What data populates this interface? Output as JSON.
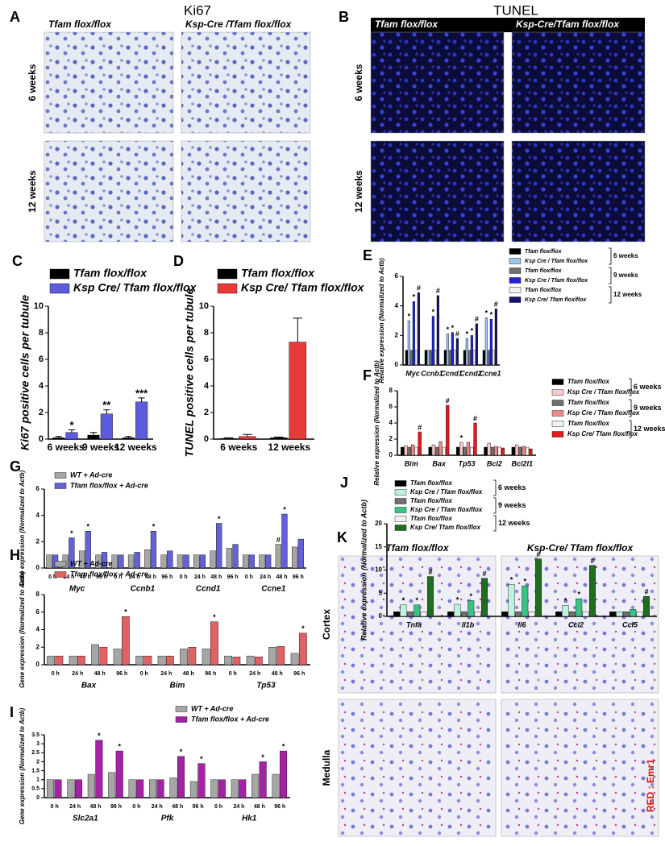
{
  "image_panels": [
    {
      "letter": "A",
      "title": "Ki67",
      "columns": [
        "Tfam flox/flox",
        "Ksp-Cre /Tfam flox/flox"
      ],
      "rows": [
        "6 weeks",
        "12 weeks"
      ]
    },
    {
      "letter": "B",
      "title": "TUNEL",
      "columns": [
        "Tfam flox/flox",
        "Ksp-Cre/Tfam flox/flox"
      ],
      "rows": [
        "6 weeks",
        "12 weeks"
      ]
    },
    {
      "letter": "K",
      "columns": [
        "Tfam flox/flox",
        "Ksp-Cre/ Tfam flox/flox"
      ],
      "rows": [
        "Cortex",
        "Medulla"
      ],
      "note": "RED : Emr1"
    }
  ],
  "chart_data": [
    {
      "type": "bar",
      "panel": "C",
      "ylabel": "Ki67 positive cells per tubule",
      "categories": [
        "6 weeks",
        "9 weeks",
        "12 weeks"
      ],
      "ylim": [
        0,
        10
      ],
      "yticks": [
        0,
        2,
        4,
        6,
        8,
        10
      ],
      "series": [
        {
          "name": "Tfam flox/flox",
          "color": "#000000",
          "values": [
            0.1,
            0.3,
            0.1
          ],
          "errors": [
            0.1,
            0.2,
            0.1
          ]
        },
        {
          "name": "Ksp Cre/ Tfam flox/flox",
          "color": "#5b5bdc",
          "values": [
            0.5,
            1.9,
            2.8
          ],
          "errors": [
            0.2,
            0.3,
            0.3
          ],
          "annotations": [
            "*",
            "**",
            "***"
          ]
        }
      ]
    },
    {
      "type": "bar",
      "panel": "D",
      "ylabel": "TUNEL positive cells per tubule",
      "categories": [
        "6 weeks",
        "12 weeks"
      ],
      "ylim": [
        0,
        10
      ],
      "yticks": [
        0,
        2,
        4,
        6,
        8,
        10
      ],
      "series": [
        {
          "name": "Tfam flox/flox",
          "color": "#000000",
          "values": [
            0.05,
            0.1
          ],
          "errors": [
            0.05,
            0.05
          ]
        },
        {
          "name": "Ksp Cre/ Tfam flox/flox",
          "color": "#e83a3a",
          "values": [
            0.2,
            7.3
          ],
          "errors": [
            0.15,
            1.8
          ]
        }
      ]
    },
    {
      "type": "bar",
      "panel": "E",
      "ylabel": "Relative expression (Normalized to Actb)",
      "categories": [
        "Myc",
        "Ccnb1",
        "Ccnd1",
        "Ccnd2",
        "Ccne1"
      ],
      "ylim": [
        0,
        6
      ],
      "yticks": [
        0,
        2,
        4,
        6
      ],
      "legend_groups": [
        "6 weeks",
        "9 weeks",
        "12 weeks"
      ],
      "series": [
        {
          "name": "Tfam flox/flox",
          "color": "#000000",
          "values": [
            1,
            1,
            1,
            1,
            1
          ]
        },
        {
          "name": "Ksp Cre / Tfam flox/flox",
          "color": "#9ec5f0",
          "values": [
            3.0,
            1,
            2.1,
            1.8,
            3.2
          ],
          "annotations": [
            "*",
            null,
            "*",
            "*",
            "*"
          ]
        },
        {
          "name": "Tfam flox/flox",
          "color": "#707070",
          "values": [
            1,
            1,
            1,
            1,
            1
          ]
        },
        {
          "name": "Ksp Cre / Tfam flox/flox",
          "color": "#2424e0",
          "values": [
            4.3,
            3.3,
            2.2,
            2.0,
            3.1
          ],
          "annotations": [
            "*",
            "*",
            "*",
            "*",
            "*"
          ]
        },
        {
          "name": "Tfam flox/flox",
          "color": "#f2f2f2",
          "values": [
            1,
            1,
            1,
            1,
            1
          ]
        },
        {
          "name": "Ksp Cre/ Tfam flox/flox",
          "color": "#141470",
          "values": [
            4.9,
            4.7,
            1.8,
            2.8,
            3.8
          ],
          "annotations": [
            "#",
            "#",
            "#",
            "#",
            "#"
          ]
        }
      ]
    },
    {
      "type": "bar",
      "panel": "F",
      "ylabel": "Relative expression (Normalized to Actb)",
      "categories": [
        "Bim",
        "Bax",
        "Tp53",
        "Bcl2",
        "Bcl2l1"
      ],
      "ylim": [
        0,
        8
      ],
      "yticks": [
        0,
        2,
        4,
        6,
        8
      ],
      "legend_groups": [
        "6 weeks",
        "9 weeks",
        "12 weeks"
      ],
      "series": [
        {
          "name": "Tfam flox/flox",
          "color": "#000000",
          "values": [
            1,
            1,
            1,
            1,
            1
          ]
        },
        {
          "name": "Ksp Cre / Tfam flox/flox",
          "color": "#f6caca",
          "values": [
            1.2,
            1.3,
            1.6,
            1.5,
            1.3
          ],
          "annotations": [
            null,
            null,
            "*",
            null,
            null
          ]
        },
        {
          "name": "Tfam flox/flox",
          "color": "#707070",
          "values": [
            1,
            1,
            1,
            1,
            1
          ]
        },
        {
          "name": "Ksp Cre / Tfam flox/flox",
          "color": "#f08a8a",
          "values": [
            1.3,
            1.7,
            1.6,
            1.1,
            1.1
          ]
        },
        {
          "name": "Tfam flox/flox",
          "color": "#f2f2f2",
          "values": [
            1,
            1,
            1,
            1,
            1
          ]
        },
        {
          "name": "Ksp Cre/ Tfam flox/flox",
          "color": "#e01c1c",
          "values": [
            2.9,
            6.2,
            4.0,
            0.9,
            0.8
          ],
          "annotations": [
            "#",
            "#",
            "#",
            null,
            null
          ]
        }
      ]
    },
    {
      "type": "bar",
      "panel": "G",
      "ylabel": "Gene expression (Normalized to Actb)",
      "categories": [
        "0 h",
        "24 h",
        "48 h",
        "96 h",
        "0 h",
        "24 h",
        "48 h",
        "96 h",
        "0 h",
        "24 h",
        "48 h",
        "96 h",
        "0 h",
        "24 h",
        "48 h",
        "96 h"
      ],
      "groups": [
        "Myc",
        "Ccnb1",
        "Ccnd1",
        "Ccne1"
      ],
      "ylim": [
        0,
        6
      ],
      "yticks": [
        0,
        2,
        4,
        6
      ],
      "series": [
        {
          "name": "WT + Ad-cre",
          "color": "#a6a6a6",
          "values": [
            1,
            1,
            1.3,
            1.0,
            1,
            1,
            1.4,
            1.0,
            1,
            1,
            1.3,
            1.5,
            1,
            1,
            1.8,
            1.6
          ],
          "annotations": [
            null,
            null,
            null,
            null,
            null,
            null,
            null,
            null,
            null,
            null,
            null,
            null,
            null,
            null,
            "#",
            null
          ]
        },
        {
          "name": "Tfam flox/flox + Ad-cre",
          "color": "#6262d6",
          "values": [
            1,
            2.3,
            2.8,
            1.2,
            1,
            1.2,
            2.8,
            1.3,
            1,
            1,
            3.4,
            1.8,
            1,
            1,
            4.1,
            2.2
          ],
          "annotations": [
            null,
            "*",
            "*",
            null,
            null,
            null,
            "*",
            null,
            null,
            null,
            "*",
            null,
            null,
            null,
            "*",
            null
          ]
        }
      ]
    },
    {
      "type": "bar",
      "panel": "H",
      "ylabel": "Gene expression (Normalized to Actb)",
      "categories": [
        "0 h",
        "24 h",
        "48 h",
        "96 h",
        "0 h",
        "24 h",
        "48 h",
        "96 h",
        "0 h",
        "24 h",
        "48 h",
        "96 h"
      ],
      "groups": [
        "Bax",
        "Bim",
        "Tp53"
      ],
      "ylim": [
        0,
        8
      ],
      "yticks": [
        0,
        2,
        4,
        6,
        8
      ],
      "series": [
        {
          "name": "WT + Ad-cre",
          "color": "#a6a6a6",
          "values": [
            1,
            1,
            2.3,
            1.8,
            1,
            1,
            1.8,
            1.8,
            1,
            1,
            2.0,
            1.3
          ]
        },
        {
          "name": "Tfam flox/flox + Ad-cre",
          "color": "#e06262",
          "values": [
            1,
            1,
            2.0,
            5.5,
            1,
            1,
            2.0,
            4.9,
            0.9,
            0.9,
            2.1,
            3.6
          ],
          "annotations": [
            null,
            null,
            null,
            "*",
            null,
            null,
            null,
            "*",
            null,
            null,
            null,
            "*"
          ]
        }
      ]
    },
    {
      "type": "bar",
      "panel": "I",
      "ylabel": "Gene expression (Normalized to Actb)",
      "categories": [
        "0 h",
        "24 h",
        "48 h",
        "96 h",
        "0 h",
        "24 h",
        "48 h",
        "96 h",
        "0 h",
        "24 h",
        "48 h",
        "96 h"
      ],
      "groups": [
        "Slc2a1",
        "Pfk",
        "Hk1"
      ],
      "ylim": [
        0,
        3.5
      ],
      "yticks": [
        0,
        0.5,
        1,
        1.5,
        2,
        2.5,
        3,
        3.5
      ],
      "series": [
        {
          "name": "WT + Ad-cre",
          "color": "#a6a6a6",
          "values": [
            1,
            1,
            1.3,
            1.4,
            1,
            1,
            1.1,
            0.9,
            1,
            1,
            1.3,
            1.3
          ]
        },
        {
          "name": "Tfam flox/flox + Ad-cre",
          "color": "#a422a4",
          "values": [
            1,
            1,
            3.2,
            2.6,
            1,
            1,
            2.3,
            1.9,
            1,
            1,
            2.0,
            2.6
          ],
          "annotations": [
            null,
            null,
            "*",
            "*",
            null,
            null,
            "*",
            "*",
            null,
            null,
            "*",
            "*"
          ]
        }
      ]
    },
    {
      "type": "bar",
      "panel": "J",
      "ylabel": "Relative expression (Normalized to Actb)",
      "categories": [
        "Tnfa",
        "Il1b",
        "Il6",
        "Ccl2",
        "Ccl5"
      ],
      "ylim": [
        0,
        20
      ],
      "yticks": [
        0,
        5,
        10,
        15,
        20
      ],
      "legend_groups": [
        "6 weeks",
        "9 weeks",
        "12 weeks"
      ],
      "series": [
        {
          "name": "Tfam flox/flox",
          "color": "#000000",
          "values": [
            1,
            1,
            1,
            1,
            1
          ]
        },
        {
          "name": "Ksp Cre / Tfam flox/flox",
          "color": "#bdf2dc",
          "values": [
            2.5,
            2.6,
            6.9,
            2.4,
            1.0
          ],
          "annotations": [
            "*",
            "*",
            "*",
            "*",
            null
          ]
        },
        {
          "name": "Tfam flox/flox",
          "color": "#707070",
          "values": [
            1,
            1,
            1,
            1,
            1
          ]
        },
        {
          "name": "Ksp Cre / Tfam flox/flox",
          "color": "#34c484",
          "values": [
            2.5,
            3.4,
            6.6,
            3.8,
            1.5
          ],
          "annotations": [
            "*",
            "*",
            "*",
            "*",
            null
          ]
        },
        {
          "name": "Tfam flox/flox",
          "color": "#f2f2f2",
          "values": [
            1,
            1,
            1,
            1,
            1
          ]
        },
        {
          "name": "Ksp Cre/ Tfam flox/flox",
          "color": "#1e6e1e",
          "values": [
            8.6,
            8.2,
            12.4,
            11.0,
            4.3
          ],
          "annotations": [
            "#",
            "#",
            "#",
            "#",
            "#"
          ]
        }
      ]
    }
  ]
}
